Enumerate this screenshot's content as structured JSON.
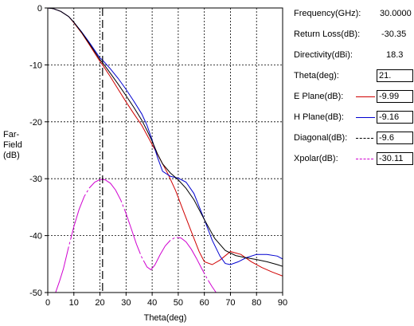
{
  "info": {
    "frequency_label": "Frequency(GHz):",
    "frequency_value": "30.0000",
    "return_loss_label": "Return Loss(dB):",
    "return_loss_value": "-30.35",
    "directivity_label": "Directivity(dBi):",
    "directivity_value": "18.3",
    "theta_label": "Theta(deg):",
    "theta_value": "21.",
    "eplane_label": "E Plane(dB):",
    "eplane_value": "-9.99",
    "eplane_color": "#d00000",
    "hplane_label": "H Plane(dB):",
    "hplane_value": "-9.16",
    "hplane_color": "#0000d0",
    "diagonal_label": "Diagonal(dB):",
    "diagonal_value": "-9.6",
    "diagonal_color": "#000000",
    "xpolar_label": "Xpolar(dB):",
    "xpolar_value": "-30.11",
    "xpolar_color": "#d000d0"
  },
  "chart_data": {
    "type": "line",
    "xlabel": "Theta(deg)",
    "ylabel": "Far-Field (dB)",
    "xlim": [
      0,
      90
    ],
    "ylim": [
      -50,
      0
    ],
    "xticks": [
      0,
      10,
      20,
      30,
      40,
      50,
      60,
      70,
      80,
      90
    ],
    "yticks": [
      0,
      -10,
      -20,
      -30,
      -40,
      -50
    ],
    "grid": true,
    "cursor_theta": 21,
    "series": [
      {
        "name": "E Plane",
        "color": "#d00000",
        "x": [
          0,
          2,
          5,
          8,
          10,
          13,
          16,
          20,
          21,
          24,
          27,
          30,
          33,
          36,
          40,
          43,
          46,
          49,
          52,
          55,
          58,
          60,
          63,
          66,
          70,
          74,
          78,
          82,
          86,
          90
        ],
        "y": [
          0,
          -0.1,
          -0.6,
          -1.5,
          -2.6,
          -4.4,
          -6.5,
          -9.4,
          -9.99,
          -12.1,
          -14.3,
          -16.5,
          -18.6,
          -20.6,
          -24.0,
          -26.5,
          -29.1,
          -32.1,
          -35.7,
          -39.3,
          -42.8,
          -44.6,
          -45.1,
          -44.3,
          -42.8,
          -43.3,
          -44.6,
          -45.6,
          -46.4,
          -47.1
        ]
      },
      {
        "name": "H Plane",
        "color": "#0000d0",
        "x": [
          0,
          2,
          5,
          8,
          10,
          13,
          16,
          20,
          21,
          24,
          27,
          30,
          33,
          36,
          38,
          40,
          42,
          44,
          47,
          50,
          53,
          56,
          60,
          63,
          66,
          68,
          70,
          73,
          76,
          80,
          84,
          88,
          90
        ],
        "y": [
          0,
          -0.1,
          -0.6,
          -1.5,
          -2.5,
          -4.2,
          -6.1,
          -8.8,
          -9.16,
          -10.7,
          -12.4,
          -14.3,
          -16.4,
          -18.6,
          -20.6,
          -23.2,
          -26.2,
          -28.7,
          -29.6,
          -29.9,
          -30.6,
          -32.6,
          -37.2,
          -40.8,
          -43.6,
          -44.9,
          -45.1,
          -44.6,
          -43.9,
          -43.3,
          -43.3,
          -43.6,
          -44.1
        ]
      },
      {
        "name": "Diagonal",
        "color": "#000000",
        "x": [
          0,
          2,
          5,
          8,
          10,
          13,
          16,
          20,
          21,
          24,
          27,
          30,
          33,
          36,
          38,
          40,
          42,
          44,
          47,
          50,
          53,
          56,
          60,
          64,
          68,
          72,
          76,
          80,
          84,
          88,
          90
        ],
        "y": [
          0,
          -0.1,
          -0.6,
          -1.5,
          -2.5,
          -4.3,
          -6.3,
          -9.1,
          -9.6,
          -11.5,
          -13.4,
          -15.4,
          -17.5,
          -19.7,
          -21.5,
          -23.4,
          -25.6,
          -27.4,
          -29.0,
          -30.2,
          -31.7,
          -33.7,
          -37.2,
          -40.5,
          -42.6,
          -43.5,
          -43.9,
          -44.2,
          -44.6,
          -45.1,
          -45.4
        ]
      },
      {
        "name": "Xpolar",
        "color": "#d000d0",
        "x": [
          3,
          4.5,
          6,
          8,
          10,
          12,
          14,
          16,
          18,
          20,
          21,
          22,
          24,
          26,
          28,
          30,
          32,
          34,
          36,
          38,
          39.5,
          41,
          43,
          45,
          47,
          49,
          51,
          53,
          55,
          57,
          59,
          61,
          63,
          64.5
        ],
        "y": [
          -50,
          -48.0,
          -45.8,
          -42.0,
          -38.4,
          -35.4,
          -33.1,
          -31.6,
          -30.6,
          -30.15,
          -30.11,
          -30.2,
          -30.8,
          -32.0,
          -33.8,
          -36.1,
          -38.8,
          -41.5,
          -43.8,
          -45.5,
          -46.0,
          -45.2,
          -43.4,
          -41.8,
          -40.8,
          -40.3,
          -40.4,
          -41.1,
          -42.4,
          -44.0,
          -45.8,
          -47.5,
          -49.0,
          -50
        ]
      }
    ]
  }
}
